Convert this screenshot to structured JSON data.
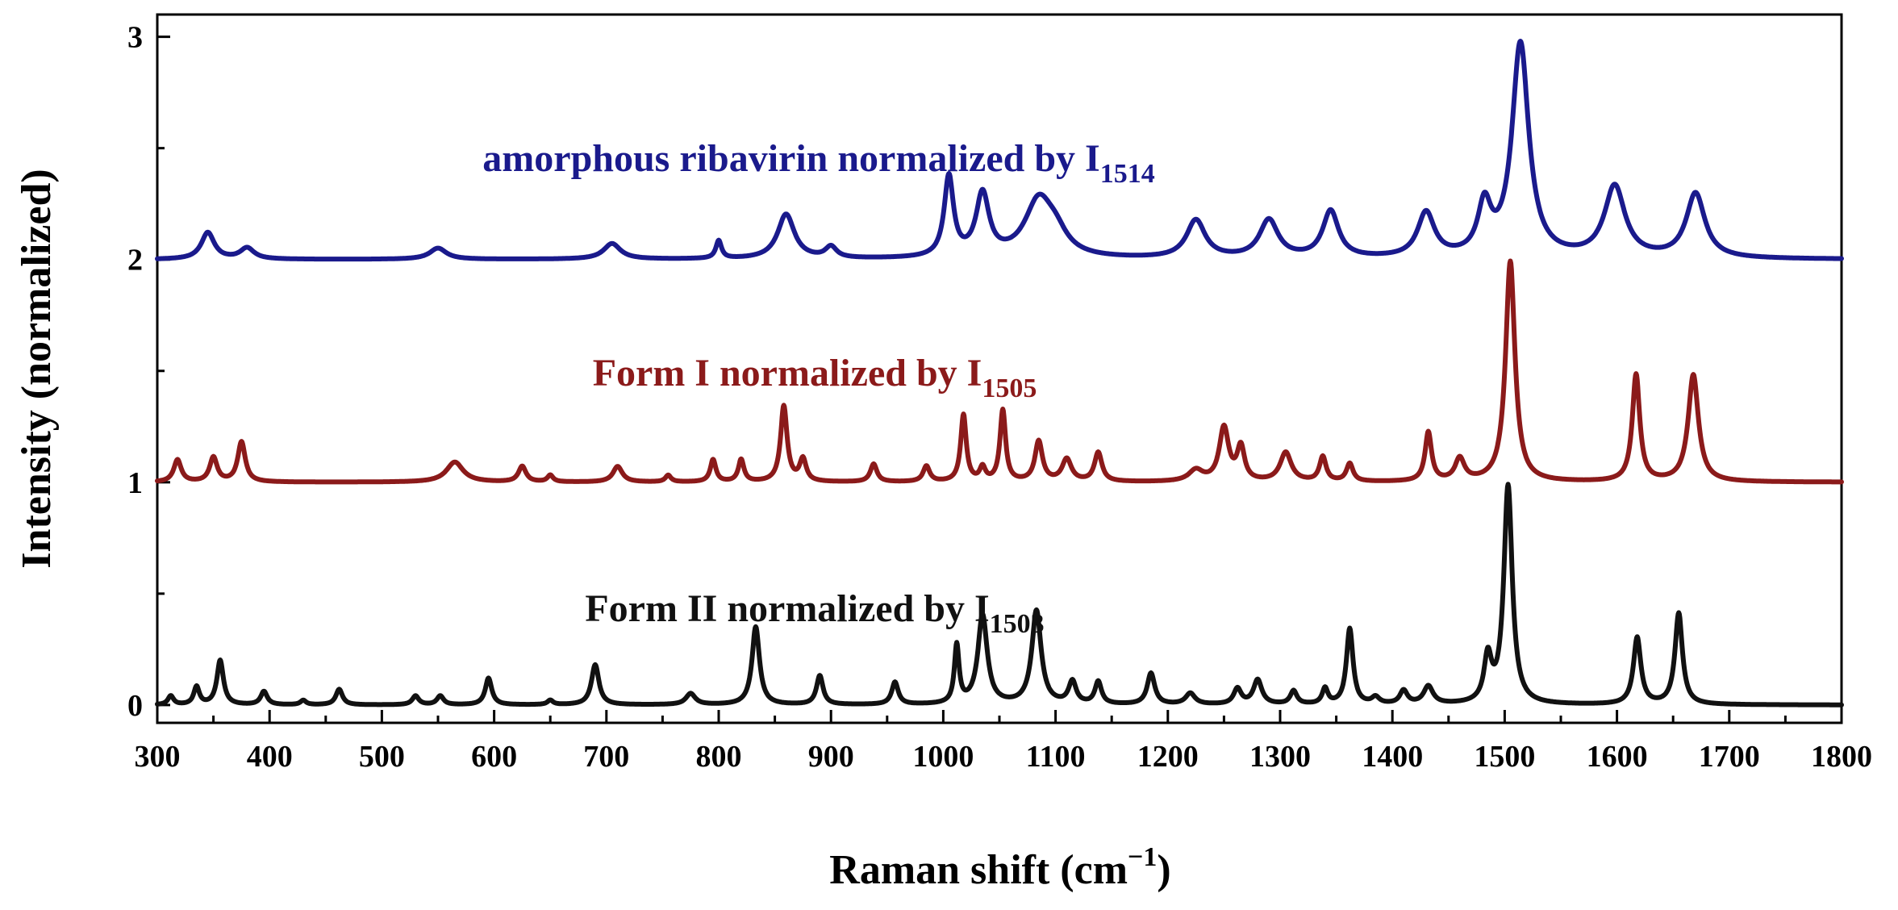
{
  "chart_data": {
    "type": "line",
    "title": "",
    "xlabel": "Raman shift (cm",
    "xlabel_sup": "−1",
    "xlabel_close": ")",
    "ylabel": "Intensity (normalized)",
    "xlim": [
      300,
      1800
    ],
    "ylim": [
      -0.08,
      3.1
    ],
    "xticks": [
      300,
      400,
      500,
      600,
      700,
      800,
      900,
      1000,
      1100,
      1200,
      1300,
      1400,
      1500,
      1600,
      1700,
      1800
    ],
    "xtick_labels": [
      "300",
      "400",
      "500",
      "600",
      "700",
      "800",
      "900",
      "1000",
      "1100",
      "1200",
      "1300",
      "1400",
      "1500",
      "1600",
      "1700",
      "1800"
    ],
    "yticks": [
      0,
      1,
      2,
      3
    ],
    "ytick_labels": [
      "0",
      "1",
      "2",
      "3"
    ],
    "series": [
      {
        "name": "amorphous ribavirin",
        "label_text": "amorphous ribavirin normalized by I",
        "label_sub": "1514",
        "color": "#1a1a8c",
        "offset": 2,
        "peaks": [
          [
            345,
            0.12,
            14
          ],
          [
            380,
            0.05,
            15
          ],
          [
            550,
            0.05,
            18
          ],
          [
            705,
            0.07,
            18
          ],
          [
            800,
            0.08,
            6
          ],
          [
            860,
            0.2,
            18
          ],
          [
            900,
            0.05,
            12
          ],
          [
            1005,
            0.36,
            10
          ],
          [
            1035,
            0.28,
            14
          ],
          [
            1085,
            0.25,
            30
          ],
          [
            1100,
            0.08,
            25
          ],
          [
            1225,
            0.17,
            20
          ],
          [
            1290,
            0.17,
            20
          ],
          [
            1345,
            0.21,
            17
          ],
          [
            1430,
            0.2,
            18
          ],
          [
            1482,
            0.22,
            14
          ],
          [
            1514,
            0.96,
            18
          ],
          [
            1598,
            0.32,
            22
          ],
          [
            1670,
            0.29,
            20
          ]
        ]
      },
      {
        "name": "Form I",
        "label_text": "Form I normalized by I",
        "label_sub": "1505",
        "color": "#8b1a1a",
        "offset": 1,
        "peaks": [
          [
            318,
            0.1,
            8
          ],
          [
            350,
            0.11,
            8
          ],
          [
            375,
            0.18,
            8
          ],
          [
            565,
            0.09,
            18
          ],
          [
            625,
            0.07,
            8
          ],
          [
            650,
            0.03,
            6
          ],
          [
            710,
            0.07,
            10
          ],
          [
            755,
            0.03,
            6
          ],
          [
            795,
            0.1,
            6
          ],
          [
            820,
            0.1,
            6
          ],
          [
            858,
            0.34,
            7
          ],
          [
            875,
            0.1,
            7
          ],
          [
            938,
            0.08,
            7
          ],
          [
            985,
            0.07,
            7
          ],
          [
            1018,
            0.3,
            6
          ],
          [
            1035,
            0.06,
            6
          ],
          [
            1053,
            0.32,
            6
          ],
          [
            1085,
            0.18,
            8
          ],
          [
            1110,
            0.1,
            10
          ],
          [
            1138,
            0.13,
            8
          ],
          [
            1225,
            0.05,
            15
          ],
          [
            1250,
            0.24,
            10
          ],
          [
            1265,
            0.15,
            8
          ],
          [
            1305,
            0.13,
            12
          ],
          [
            1338,
            0.11,
            7
          ],
          [
            1362,
            0.08,
            7
          ],
          [
            1432,
            0.22,
            7
          ],
          [
            1460,
            0.1,
            10
          ],
          [
            1505,
            0.99,
            10
          ],
          [
            1617,
            0.48,
            8
          ],
          [
            1668,
            0.48,
            11
          ]
        ]
      },
      {
        "name": "Form II",
        "label_text": "Form II normalized by I",
        "label_sub": "1503",
        "color": "#111111",
        "offset": 0,
        "peaks": [
          [
            312,
            0.04,
            6
          ],
          [
            335,
            0.08,
            6
          ],
          [
            356,
            0.2,
            7
          ],
          [
            395,
            0.06,
            7
          ],
          [
            430,
            0.02,
            6
          ],
          [
            462,
            0.07,
            7
          ],
          [
            530,
            0.04,
            7
          ],
          [
            552,
            0.04,
            7
          ],
          [
            595,
            0.12,
            7
          ],
          [
            650,
            0.02,
            6
          ],
          [
            690,
            0.18,
            8
          ],
          [
            775,
            0.05,
            10
          ],
          [
            833,
            0.35,
            8
          ],
          [
            890,
            0.13,
            7
          ],
          [
            957,
            0.1,
            7
          ],
          [
            1012,
            0.26,
            5
          ],
          [
            1035,
            0.4,
            10
          ],
          [
            1083,
            0.42,
            10
          ],
          [
            1115,
            0.1,
            8
          ],
          [
            1138,
            0.1,
            7
          ],
          [
            1185,
            0.14,
            8
          ],
          [
            1220,
            0.05,
            10
          ],
          [
            1262,
            0.07,
            8
          ],
          [
            1280,
            0.11,
            9
          ],
          [
            1312,
            0.06,
            7
          ],
          [
            1340,
            0.07,
            6
          ],
          [
            1362,
            0.34,
            7
          ],
          [
            1385,
            0.03,
            8
          ],
          [
            1410,
            0.06,
            8
          ],
          [
            1432,
            0.08,
            10
          ],
          [
            1485,
            0.2,
            8
          ],
          [
            1503,
            0.98,
            9
          ],
          [
            1618,
            0.3,
            8
          ],
          [
            1655,
            0.41,
            8
          ]
        ]
      }
    ]
  }
}
